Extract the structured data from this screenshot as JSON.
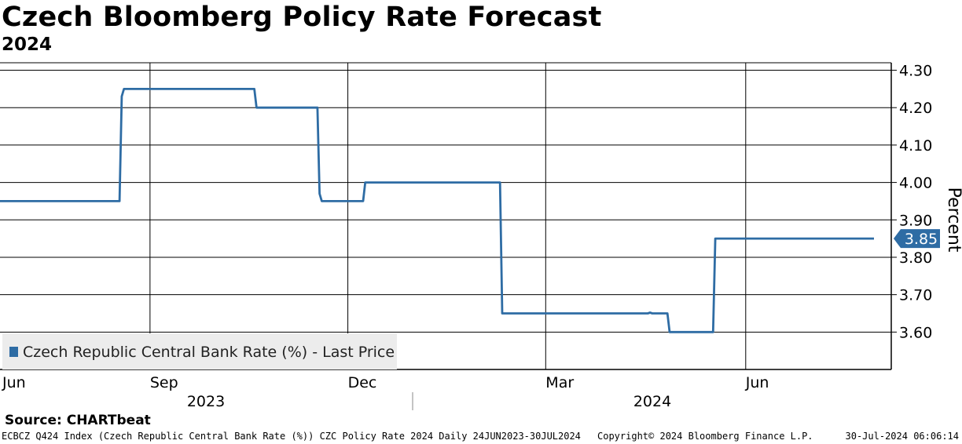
{
  "header": {
    "title": "Czech Bloomberg Policy Rate Forecast",
    "subtitle": "2024"
  },
  "chart_data": {
    "type": "line",
    "title": "Czech Bloomberg Policy Rate Forecast",
    "subtitle": "2024",
    "ylabel": "Percent",
    "ylim": [
      3.5,
      4.32
    ],
    "y_ticks": [
      "3.60",
      "3.70",
      "3.80",
      "3.90",
      "4.00",
      "4.10",
      "4.20",
      "4.30"
    ],
    "x_tick_labels": [
      "Jun",
      "Sep",
      "Dec",
      "Mar",
      "Jun"
    ],
    "x_year_labels": [
      "2023",
      "2024"
    ],
    "grid": true,
    "legend": "bottom-left",
    "last_value_label": "3.85",
    "color": "#2e6ca4",
    "series": [
      {
        "name": "Czech Republic Central Bank Rate (%) - Last Price",
        "x": [
          "2023-06-24",
          "2023-08-18",
          "2023-08-19",
          "2023-08-20",
          "2023-10-19",
          "2023-10-20",
          "2023-11-17",
          "2023-11-18",
          "2023-11-19",
          "2023-12-08",
          "2023-12-09",
          "2024-02-09",
          "2024-02-10",
          "2024-04-17",
          "2024-04-18",
          "2024-04-19",
          "2024-04-26",
          "2024-04-27",
          "2024-05-17",
          "2024-05-18",
          "2024-07-30"
        ],
        "values": [
          3.95,
          3.95,
          4.23,
          4.25,
          4.25,
          4.2,
          4.2,
          3.97,
          3.95,
          3.95,
          4.0,
          4.0,
          3.65,
          3.65,
          3.652,
          3.65,
          3.65,
          3.6,
          3.6,
          3.85,
          3.85
        ]
      }
    ]
  },
  "source": {
    "text": "Source: CHARTbeat"
  },
  "footer": {
    "left": "ECBCZ Q424 Index (Czech Republic Central Bank Rate (%)) CZC Policy Rate 2024  Daily 24JUN2023-30JUL2024",
    "copyright": "Copyright© 2024 Bloomberg Finance L.P.",
    "timestamp": "30-Jul-2024 06:06:14"
  }
}
